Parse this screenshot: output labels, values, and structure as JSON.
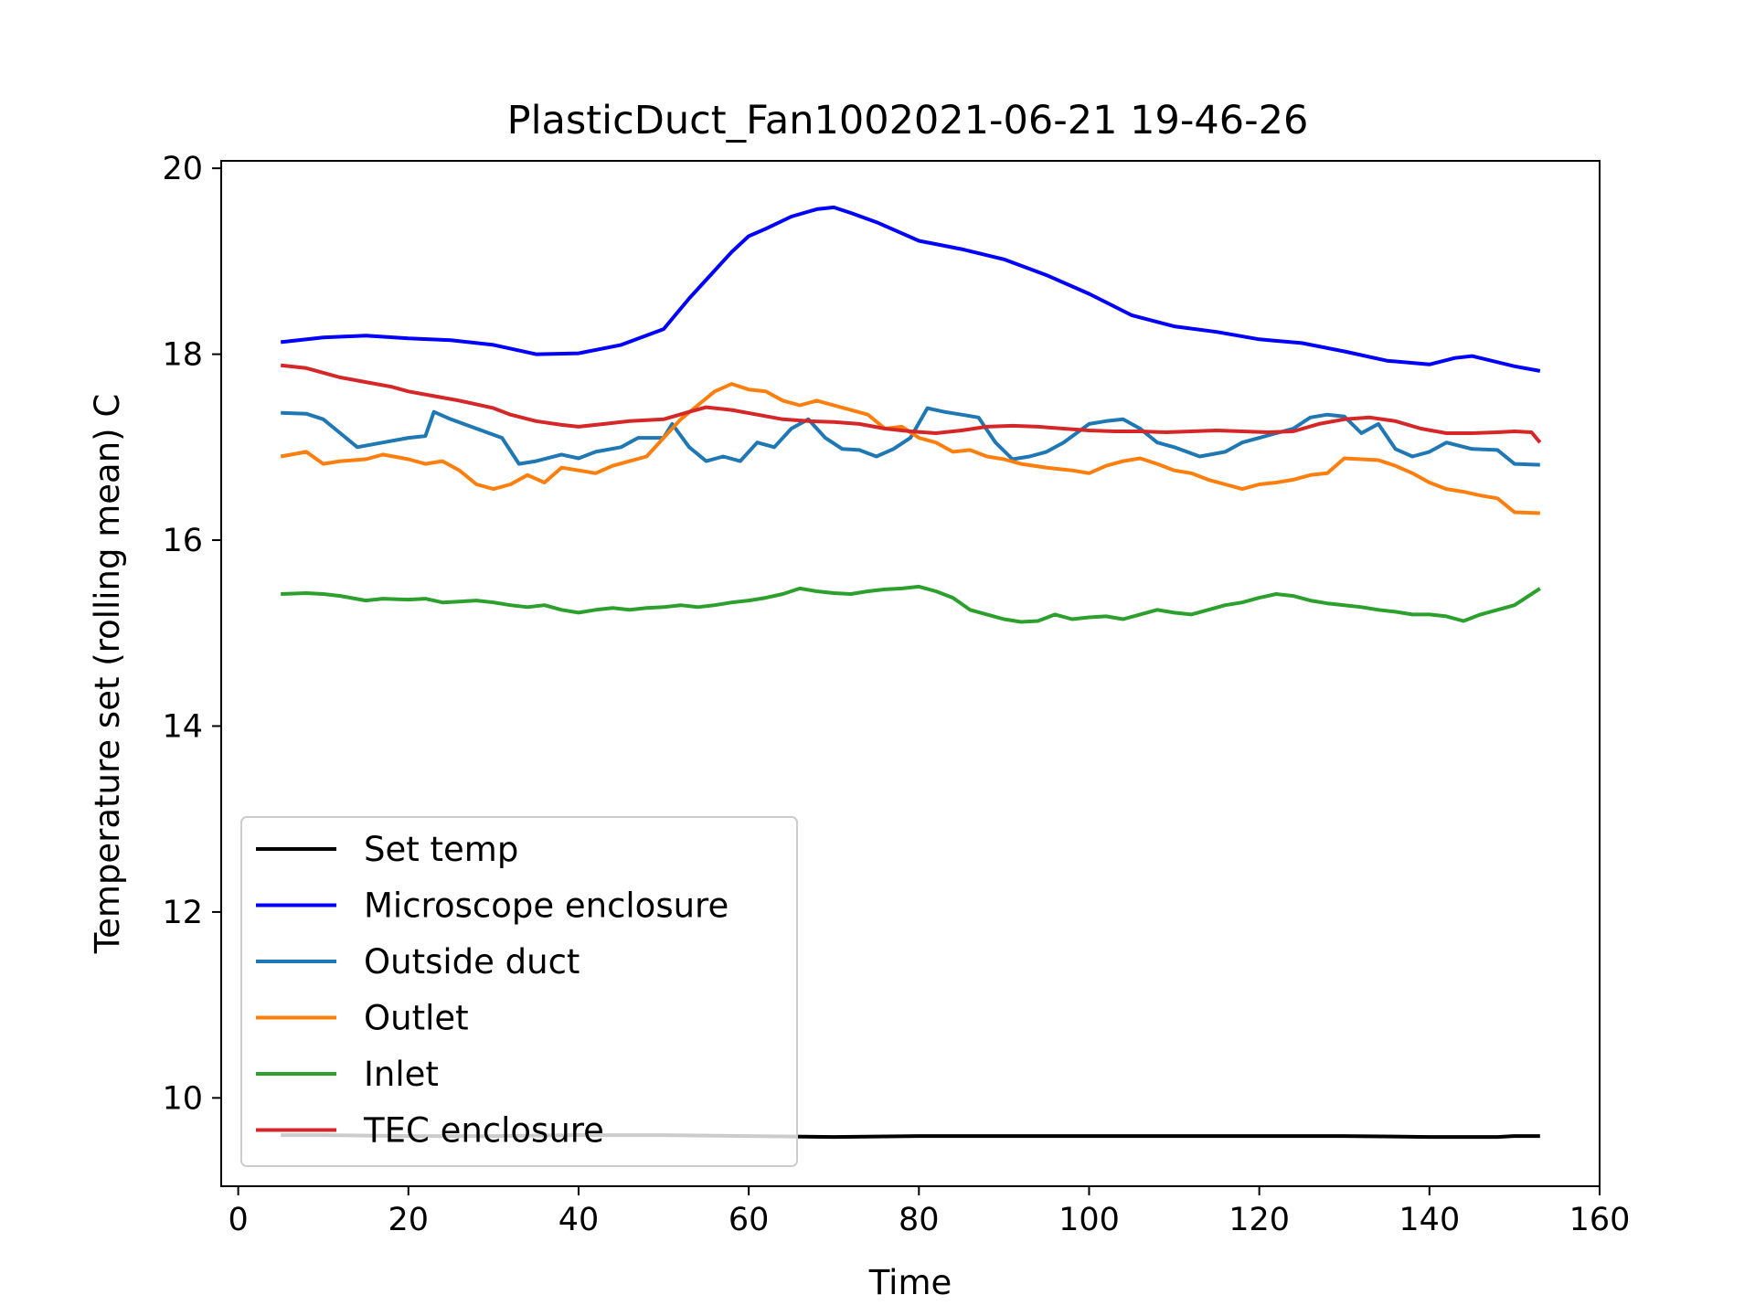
{
  "chart_data": {
    "type": "line",
    "title": "PlasticDuct_Fan1002021-06-21 19-46-26",
    "xlabel": "Time",
    "ylabel": "Temperature set (rolling mean) C",
    "xlim": [
      -2,
      160
    ],
    "ylim": [
      9.05,
      20.08
    ],
    "xticks": [
      0,
      20,
      40,
      60,
      80,
      100,
      120,
      140,
      160
    ],
    "yticks": [
      10,
      12,
      14,
      16,
      18,
      20
    ],
    "grid": false,
    "legend_position": "lower-left",
    "series": [
      {
        "name": "Set temp",
        "color": "#000000",
        "x": [
          5,
          10,
          20,
          30,
          40,
          50,
          60,
          70,
          80,
          90,
          100,
          110,
          120,
          130,
          140,
          145,
          148,
          150,
          153
        ],
        "y": [
          9.6,
          9.6,
          9.59,
          9.59,
          9.6,
          9.6,
          9.59,
          9.58,
          9.59,
          9.59,
          9.59,
          9.59,
          9.59,
          9.59,
          9.58,
          9.58,
          9.58,
          9.59,
          9.59
        ]
      },
      {
        "name": "Microscope enclosure",
        "color": "#0000ff",
        "x": [
          5,
          10,
          15,
          20,
          25,
          30,
          35,
          40,
          45,
          50,
          53,
          56,
          58,
          60,
          62,
          65,
          68,
          70,
          72,
          75,
          78,
          80,
          85,
          90,
          95,
          100,
          105,
          110,
          115,
          120,
          125,
          130,
          135,
          140,
          143,
          145,
          150,
          153
        ],
        "y": [
          18.13,
          18.18,
          18.2,
          18.17,
          18.15,
          18.1,
          18.0,
          18.01,
          18.1,
          18.27,
          18.6,
          18.9,
          19.1,
          19.27,
          19.35,
          19.48,
          19.56,
          19.58,
          19.52,
          19.42,
          19.3,
          19.22,
          19.13,
          19.02,
          18.85,
          18.65,
          18.42,
          18.3,
          18.24,
          18.16,
          18.12,
          18.03,
          17.93,
          17.89,
          17.96,
          17.98,
          17.87,
          17.82
        ]
      },
      {
        "name": "Outside duct",
        "color": "#1f77b4",
        "x": [
          5,
          8,
          10,
          12,
          14,
          17,
          20,
          22,
          23,
          25,
          28,
          31,
          33,
          35,
          38,
          40,
          42,
          45,
          47,
          50,
          51,
          53,
          55,
          57,
          59,
          61,
          63,
          65,
          67,
          69,
          71,
          73,
          75,
          77,
          79,
          81,
          83,
          85,
          87,
          89,
          91,
          93,
          95,
          97,
          100,
          102,
          104,
          106,
          108,
          110,
          113,
          116,
          118,
          120,
          122,
          124,
          126,
          128,
          130,
          132,
          134,
          136,
          138,
          140,
          142,
          145,
          148,
          150,
          153
        ],
        "y": [
          17.37,
          17.36,
          17.3,
          17.15,
          17.0,
          17.05,
          17.1,
          17.12,
          17.38,
          17.3,
          17.2,
          17.1,
          16.82,
          16.85,
          16.92,
          16.88,
          16.95,
          17.0,
          17.1,
          17.1,
          17.25,
          17.0,
          16.85,
          16.9,
          16.85,
          17.05,
          17.0,
          17.2,
          17.3,
          17.1,
          16.98,
          16.97,
          16.9,
          16.98,
          17.1,
          17.42,
          17.38,
          17.35,
          17.32,
          17.05,
          16.87,
          16.9,
          16.95,
          17.05,
          17.25,
          17.28,
          17.3,
          17.2,
          17.05,
          17.0,
          16.9,
          16.95,
          17.05,
          17.1,
          17.15,
          17.2,
          17.32,
          17.35,
          17.33,
          17.15,
          17.25,
          16.98,
          16.9,
          16.95,
          17.05,
          16.98,
          16.97,
          16.82,
          16.81
        ]
      },
      {
        "name": "Outlet",
        "color": "#ff7f0e",
        "x": [
          5,
          8,
          10,
          12,
          15,
          17,
          20,
          22,
          24,
          26,
          28,
          30,
          32,
          34,
          36,
          38,
          40,
          42,
          44,
          46,
          48,
          50,
          52,
          54,
          56,
          58,
          60,
          62,
          64,
          66,
          68,
          70,
          72,
          74,
          76,
          78,
          80,
          82,
          84,
          86,
          88,
          90,
          92,
          95,
          98,
          100,
          102,
          104,
          106,
          108,
          110,
          112,
          114,
          116,
          118,
          120,
          122,
          124,
          126,
          128,
          130,
          132,
          134,
          136,
          138,
          140,
          142,
          144,
          146,
          148,
          150,
          153
        ],
        "y": [
          16.9,
          16.95,
          16.82,
          16.85,
          16.87,
          16.92,
          16.87,
          16.82,
          16.85,
          16.75,
          16.6,
          16.55,
          16.6,
          16.7,
          16.62,
          16.78,
          16.75,
          16.72,
          16.8,
          16.85,
          16.9,
          17.1,
          17.3,
          17.45,
          17.6,
          17.68,
          17.62,
          17.6,
          17.5,
          17.45,
          17.5,
          17.45,
          17.4,
          17.35,
          17.2,
          17.22,
          17.1,
          17.05,
          16.95,
          16.97,
          16.9,
          16.87,
          16.82,
          16.78,
          16.75,
          16.72,
          16.8,
          16.85,
          16.88,
          16.82,
          16.75,
          16.72,
          16.65,
          16.6,
          16.55,
          16.6,
          16.62,
          16.65,
          16.7,
          16.72,
          16.88,
          16.87,
          16.86,
          16.8,
          16.72,
          16.62,
          16.55,
          16.52,
          16.48,
          16.45,
          16.3,
          16.29
        ]
      },
      {
        "name": "Inlet",
        "color": "#2ca02c",
        "x": [
          5,
          8,
          10,
          12,
          15,
          17,
          20,
          22,
          24,
          26,
          28,
          30,
          32,
          34,
          36,
          38,
          40,
          42,
          44,
          46,
          48,
          50,
          52,
          54,
          56,
          58,
          60,
          62,
          64,
          66,
          68,
          70,
          72,
          74,
          76,
          78,
          80,
          82,
          84,
          86,
          88,
          90,
          92,
          94,
          96,
          98,
          100,
          102,
          104,
          106,
          108,
          110,
          112,
          114,
          116,
          118,
          120,
          122,
          124,
          126,
          128,
          130,
          132,
          134,
          136,
          138,
          140,
          142,
          144,
          146,
          148,
          150,
          153
        ],
        "y": [
          15.42,
          15.43,
          15.42,
          15.4,
          15.35,
          15.37,
          15.36,
          15.37,
          15.33,
          15.34,
          15.35,
          15.33,
          15.3,
          15.28,
          15.3,
          15.25,
          15.22,
          15.25,
          15.27,
          15.25,
          15.27,
          15.28,
          15.3,
          15.28,
          15.3,
          15.33,
          15.35,
          15.38,
          15.42,
          15.48,
          15.45,
          15.43,
          15.42,
          15.45,
          15.47,
          15.48,
          15.5,
          15.45,
          15.38,
          15.25,
          15.2,
          15.15,
          15.12,
          15.13,
          15.2,
          15.15,
          15.17,
          15.18,
          15.15,
          15.2,
          15.25,
          15.22,
          15.2,
          15.25,
          15.3,
          15.33,
          15.38,
          15.42,
          15.4,
          15.35,
          15.32,
          15.3,
          15.28,
          15.25,
          15.23,
          15.2,
          15.2,
          15.18,
          15.13,
          15.2,
          15.25,
          15.3,
          15.48
        ]
      },
      {
        "name": "TEC enclosure",
        "color": "#d62728",
        "x": [
          5,
          8,
          10,
          12,
          15,
          18,
          20,
          23,
          26,
          30,
          32,
          35,
          38,
          40,
          43,
          46,
          50,
          53,
          55,
          58,
          61,
          64,
          67,
          70,
          73,
          76,
          79,
          82,
          85,
          88,
          91,
          94,
          97,
          100,
          103,
          106,
          109,
          112,
          115,
          118,
          121,
          124,
          127,
          130,
          133,
          136,
          139,
          142,
          145,
          148,
          150,
          152,
          153
        ],
        "y": [
          17.88,
          17.85,
          17.8,
          17.75,
          17.7,
          17.65,
          17.6,
          17.55,
          17.5,
          17.42,
          17.35,
          17.28,
          17.24,
          17.22,
          17.25,
          17.28,
          17.3,
          17.38,
          17.43,
          17.4,
          17.35,
          17.3,
          17.28,
          17.27,
          17.25,
          17.2,
          17.17,
          17.15,
          17.18,
          17.22,
          17.23,
          17.22,
          17.2,
          17.18,
          17.17,
          17.17,
          17.16,
          17.17,
          17.18,
          17.17,
          17.16,
          17.17,
          17.25,
          17.3,
          17.32,
          17.28,
          17.2,
          17.15,
          17.15,
          17.16,
          17.17,
          17.16,
          17.05
        ]
      }
    ]
  }
}
